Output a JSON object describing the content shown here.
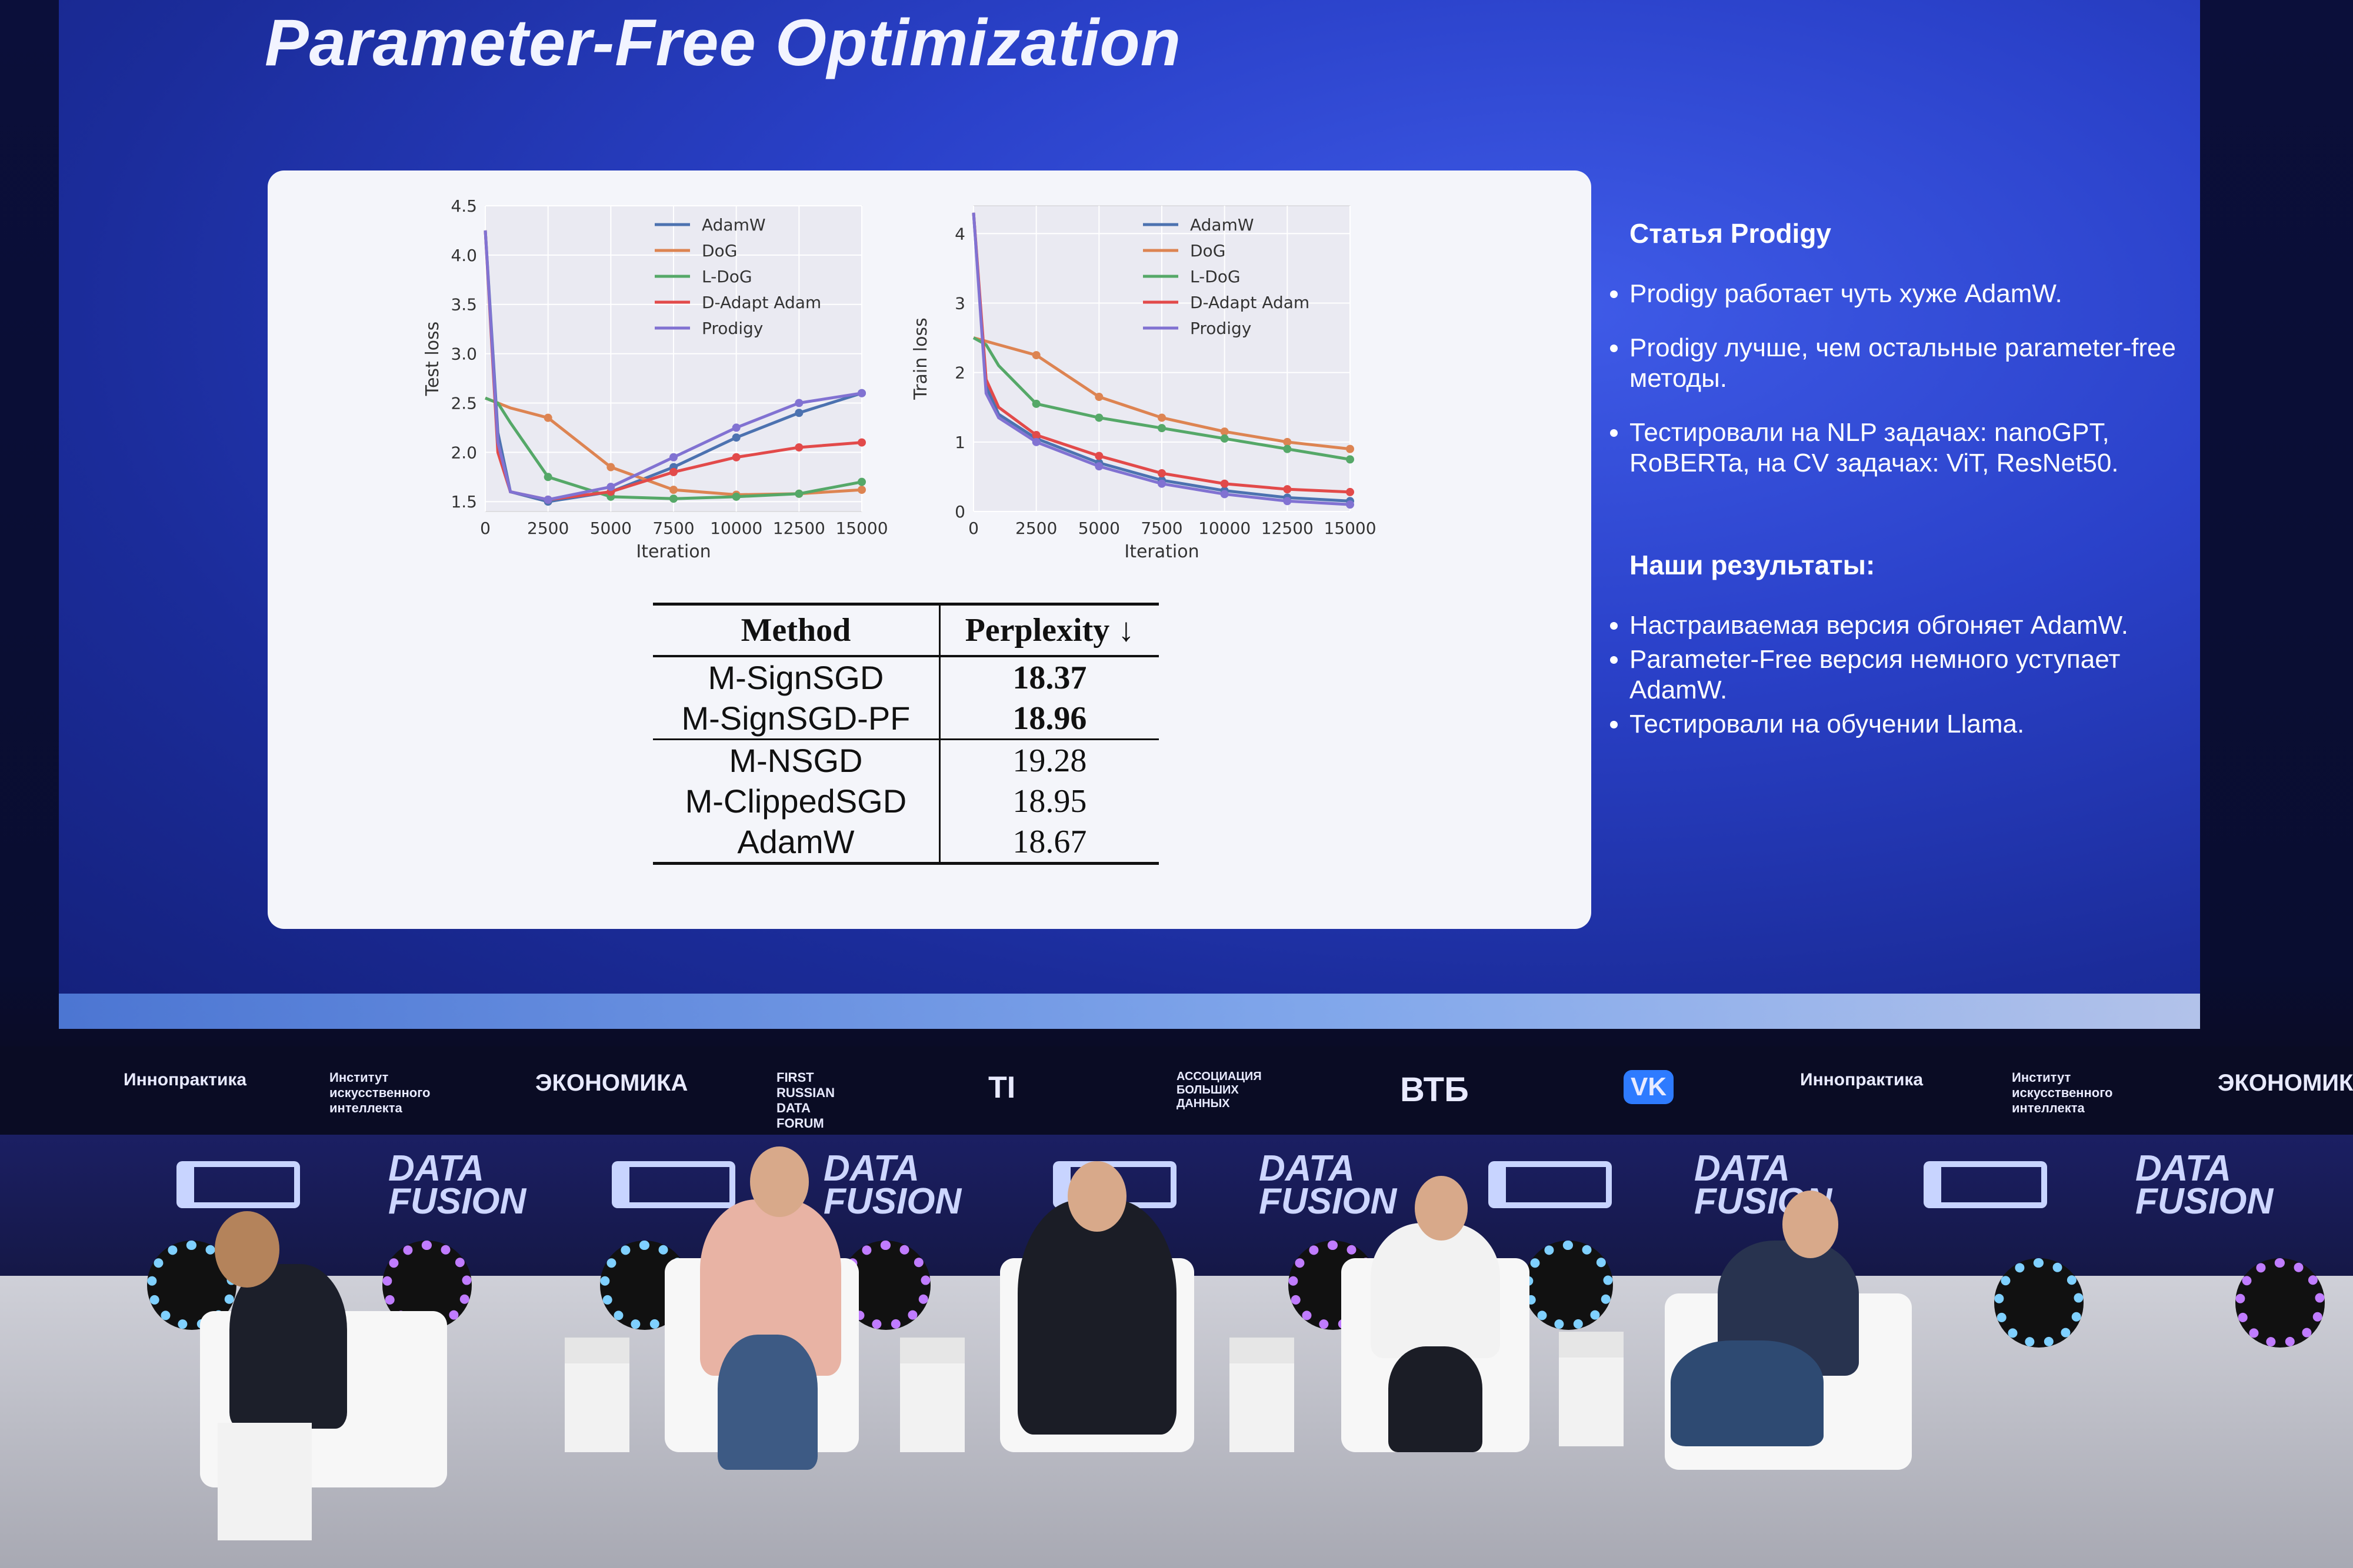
{
  "slide": {
    "title": "Parameter-Free Optimization",
    "chart_left": {
      "ylabel": "Test loss",
      "xlabel": "Iteration",
      "xticks": [
        "0",
        "2500",
        "5000",
        "7500",
        "10000",
        "12500",
        "15000"
      ],
      "yticks": [
        "1.5",
        "2.0",
        "2.5",
        "3.0",
        "3.5",
        "4.0",
        "4.5"
      ],
      "legend": [
        "AdamW",
        "DoG",
        "L-DoG",
        "D-Adapt Adam",
        "Prodigy"
      ]
    },
    "chart_right": {
      "ylabel": "Train loss",
      "xlabel": "Iteration",
      "xticks": [
        "0",
        "2500",
        "5000",
        "7500",
        "10000",
        "12500",
        "15000"
      ],
      "yticks": [
        "0",
        "1",
        "2",
        "3",
        "4"
      ],
      "legend": [
        "AdamW",
        "DoG",
        "L-DoG",
        "D-Adapt Adam",
        "Prodigy"
      ]
    },
    "table": {
      "headers": [
        "Method",
        "Perplexity ↓"
      ],
      "rows": [
        {
          "method": "M-SignSGD",
          "value": "18.37"
        },
        {
          "method": "M-SignSGD-PF",
          "value": "18.96"
        },
        {
          "method": "M-NSGD",
          "value": "19.28"
        },
        {
          "method": "M-ClippedSGD",
          "value": "18.95"
        },
        {
          "method": "AdamW",
          "value": "18.67"
        }
      ]
    },
    "notes": {
      "heading1": "Статья Prodigy",
      "items1": [
        "Prodigy работает чуть хуже AdamW.",
        "Prodigy лучше, чем остальные parameter-free методы.",
        "Тестировали на NLP задачах: nanoGPT, RoBERTa, на CV задачах: ViT, ResNet50."
      ],
      "heading2": "Наши результаты:",
      "items2": [
        "Настраиваемая версия обгоняет AdamW.",
        "Parameter-Free версия немного уступает AdamW.",
        "Тестировали на обучении Llama."
      ]
    }
  },
  "chart_data": [
    {
      "type": "line",
      "ylabel": "Test loss",
      "xlabel": "Iteration",
      "xlim": [
        0,
        15000
      ],
      "ylim": [
        1.4,
        4.5
      ],
      "x": [
        0,
        500,
        1000,
        2500,
        5000,
        7500,
        10000,
        12500,
        15000
      ],
      "series": [
        {
          "name": "AdamW",
          "color": "#4c72b0",
          "values": [
            4.25,
            2.2,
            1.6,
            1.5,
            1.6,
            1.85,
            2.15,
            2.4,
            2.6
          ]
        },
        {
          "name": "DoG",
          "color": "#dd8452",
          "values": [
            2.55,
            2.5,
            2.45,
            2.35,
            1.85,
            1.62,
            1.57,
            1.58,
            1.62
          ]
        },
        {
          "name": "L-DoG",
          "color": "#55a868",
          "values": [
            2.55,
            2.5,
            2.3,
            1.75,
            1.55,
            1.53,
            1.55,
            1.58,
            1.7
          ]
        },
        {
          "name": "D-Adapt Adam",
          "color": "#e24a4a",
          "values": [
            4.25,
            2.0,
            1.6,
            1.52,
            1.6,
            1.8,
            1.95,
            2.05,
            2.1
          ]
        },
        {
          "name": "Prodigy",
          "color": "#8172d2",
          "values": [
            4.25,
            2.1,
            1.6,
            1.52,
            1.65,
            1.95,
            2.25,
            2.5,
            2.6
          ]
        }
      ]
    },
    {
      "type": "line",
      "ylabel": "Train loss",
      "xlabel": "Iteration",
      "xlim": [
        0,
        15000
      ],
      "ylim": [
        0,
        4.4
      ],
      "x": [
        0,
        500,
        1000,
        2500,
        5000,
        7500,
        10000,
        12500,
        15000
      ],
      "series": [
        {
          "name": "AdamW",
          "color": "#4c72b0",
          "values": [
            4.3,
            1.8,
            1.4,
            1.05,
            0.7,
            0.45,
            0.3,
            0.2,
            0.15
          ]
        },
        {
          "name": "DoG",
          "color": "#dd8452",
          "values": [
            2.5,
            2.45,
            2.4,
            2.25,
            1.65,
            1.35,
            1.15,
            1.0,
            0.9
          ]
        },
        {
          "name": "L-DoG",
          "color": "#55a868",
          "values": [
            2.5,
            2.4,
            2.1,
            1.55,
            1.35,
            1.2,
            1.05,
            0.9,
            0.75
          ]
        },
        {
          "name": "D-Adapt Adam",
          "color": "#e24a4a",
          "values": [
            4.3,
            1.9,
            1.5,
            1.1,
            0.8,
            0.55,
            0.4,
            0.32,
            0.28
          ]
        },
        {
          "name": "Prodigy",
          "color": "#8172d2",
          "values": [
            4.3,
            1.7,
            1.35,
            1.0,
            0.65,
            0.4,
            0.25,
            0.15,
            0.1
          ]
        }
      ]
    }
  ],
  "sponsors": [
    "Иннопрактика",
    "Институт искусственного интеллекта",
    "ЭКОНОМИКА",
    "FIRST RUSSIAN DATA FORUM",
    "ТI",
    "АССОЦИАЦИЯ БОЛЬШИХ ДАННЫХ",
    "ВТБ",
    "VK",
    "Иннопрактика",
    "Институт искусственного интеллекта",
    "ЭКОНОМИКА"
  ],
  "stage": {
    "brand": "DATA FUSION"
  }
}
